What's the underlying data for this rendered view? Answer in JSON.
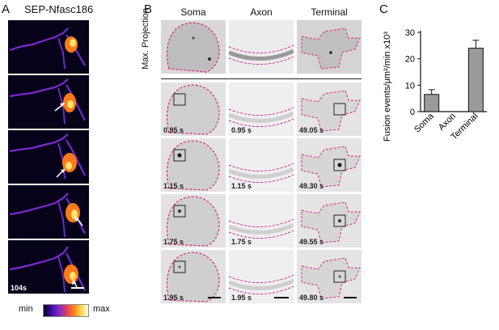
{
  "panel_a": {
    "letter": "A",
    "title": "SEP-Nfasc186",
    "time_label": "104s",
    "colorbar": {
      "min_label": "min",
      "max_label": "max"
    }
  },
  "panel_b": {
    "letter": "B",
    "columns": [
      "Soma",
      "Axon",
      "Terminal"
    ],
    "row_label": "Max. Projection",
    "time_rows": [
      [
        "0.95 s",
        "0.95 s",
        "49.05 s"
      ],
      [
        "1.15 s",
        "1.15 s",
        "49.30 s"
      ],
      [
        "1.75 s",
        "1.75 s",
        "49.55 s"
      ],
      [
        "1.95 s",
        "1.95 s",
        "49.80 s"
      ]
    ]
  },
  "panel_c": {
    "letter": "C",
    "chart_data": {
      "type": "bar",
      "categories": [
        "Soma",
        "Axon",
        "Terminal"
      ],
      "values": [
        6.5,
        0,
        24
      ],
      "errors": [
        1.8,
        0,
        3.0
      ],
      "ylabel": "Fusion events/μm²/min x10³",
      "yticks": [
        0,
        10,
        20,
        30
      ],
      "ylim": [
        0,
        30
      ],
      "bar_color": "#9a9a9a"
    }
  },
  "colors": {
    "outline": "#e0287a",
    "heat_dark": "#05021a",
    "heat_purple": "#7a2ad0",
    "heat_orange": "#ff7a1a",
    "heat_yellow": "#ffe36a"
  }
}
